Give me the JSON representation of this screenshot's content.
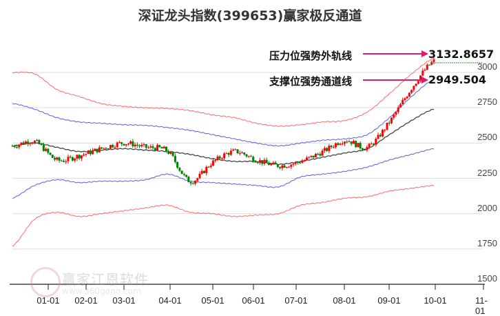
{
  "title": "深证龙头指数(399653)赢家极反通道",
  "annotations": {
    "upper": {
      "label": "压力位强势外轨线",
      "value": "3132.8657"
    },
    "lower": {
      "label": "支撑位强势通道线",
      "value": "2949.504"
    }
  },
  "watermark": {
    "text": "赢家江恩软件",
    "url": "www.360gann.com",
    "seal": "江赢恩家"
  },
  "colors": {
    "up": "#ff0000",
    "down": "#008000",
    "outer_band": "#ff4444",
    "inner_band": "#3333dd",
    "mid": "#222222",
    "arrow": "#e0196b",
    "grid": "#dddddd"
  },
  "chart_data": {
    "type": "line",
    "title": "深证龙头指数(399653)赢家极反通道",
    "xlabel": "",
    "ylabel": "",
    "ylim": [
      1500,
      3150
    ],
    "yticks": [
      1500,
      1750,
      2000,
      2250,
      2500,
      2750,
      3000
    ],
    "xticks": [
      "01-01",
      "02-01",
      "03-01",
      "04-01",
      "05-01",
      "06-01",
      "07-01",
      "08-01",
      "09-01",
      "10-01",
      "11-01"
    ],
    "grid": true,
    "legend": "none",
    "x": [
      "12-20",
      "01-01",
      "01-15",
      "02-01",
      "02-15",
      "03-01",
      "03-15",
      "04-01",
      "04-15",
      "05-01",
      "05-15",
      "06-01",
      "06-15",
      "07-01",
      "07-15",
      "08-01",
      "08-15",
      "09-01",
      "09-15",
      "09-28"
    ],
    "series": [
      {
        "name": "outer_upper",
        "values": [
          3000,
          2990,
          2880,
          2830,
          2780,
          2760,
          2750,
          2745,
          2730,
          2700,
          2680,
          2640,
          2620,
          2630,
          2650,
          2660,
          2720,
          2850,
          2990,
          3100
        ]
      },
      {
        "name": "inner_upper",
        "values": [
          2780,
          2740,
          2680,
          2650,
          2640,
          2630,
          2625,
          2610,
          2590,
          2560,
          2530,
          2500,
          2480,
          2500,
          2520,
          2530,
          2560,
          2680,
          2830,
          2950
        ]
      },
      {
        "name": "middle",
        "values": [
          2480,
          2500,
          2470,
          2440,
          2450,
          2460,
          2450,
          2440,
          2420,
          2390,
          2370,
          2370,
          2350,
          2370,
          2400,
          2430,
          2460,
          2560,
          2660,
          2740
        ]
      },
      {
        "name": "inner_lower",
        "values": [
          2110,
          2200,
          2240,
          2220,
          2230,
          2230,
          2240,
          2280,
          2230,
          2220,
          2210,
          2200,
          2190,
          2260,
          2280,
          2300,
          2330,
          2380,
          2420,
          2460
        ]
      },
      {
        "name": "outer_lower",
        "values": [
          1770,
          1960,
          2010,
          1980,
          2000,
          2020,
          2040,
          2060,
          2010,
          2000,
          1980,
          1990,
          2000,
          2060,
          2080,
          2110,
          2120,
          2160,
          2180,
          2200
        ]
      },
      {
        "name": "close",
        "values": [
          2480,
          2510,
          2380,
          2410,
          2460,
          2500,
          2470,
          2440,
          2230,
          2360,
          2440,
          2380,
          2340,
          2370,
          2440,
          2520,
          2470,
          2650,
          2890,
          3080
        ]
      }
    ],
    "annotations": [
      {
        "text": "压力位强势外轨线",
        "value": 3132.8657
      },
      {
        "text": "支撑位强势通道线",
        "value": 2949.504
      }
    ]
  }
}
